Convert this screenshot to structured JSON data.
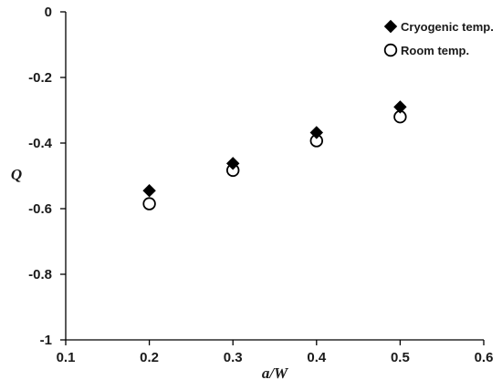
{
  "chart_data": {
    "type": "scatter",
    "title": "",
    "xlabel": "a/W",
    "ylabel": "Q",
    "xlim": [
      0.1,
      0.6
    ],
    "ylim": [
      -1,
      0
    ],
    "xticks": [
      0.1,
      0.2,
      0.3,
      0.4,
      0.5,
      0.6
    ],
    "yticks": [
      0,
      -0.2,
      -0.4,
      -0.6,
      -0.8,
      -1
    ],
    "xtick_labels": [
      "0.1",
      "0.2",
      "0.3",
      "0.4",
      "0.5",
      "0.6"
    ],
    "ytick_labels": [
      "0",
      "-0.2",
      "-0.4",
      "-0.6",
      "-0.8",
      "-1"
    ],
    "grid": false,
    "legend_position": "top-right",
    "series": [
      {
        "name": "Cryogenic temp.",
        "marker": "filled-diamond",
        "color": "#000000",
        "x": [
          0.2,
          0.3,
          0.4,
          0.5
        ],
        "y": [
          -0.545,
          -0.462,
          -0.368,
          -0.29
        ]
      },
      {
        "name": "Room temp.",
        "marker": "open-circle",
        "color": "#000000",
        "x": [
          0.2,
          0.3,
          0.4,
          0.5
        ],
        "y": [
          -0.585,
          -0.483,
          -0.393,
          -0.32
        ]
      }
    ]
  }
}
